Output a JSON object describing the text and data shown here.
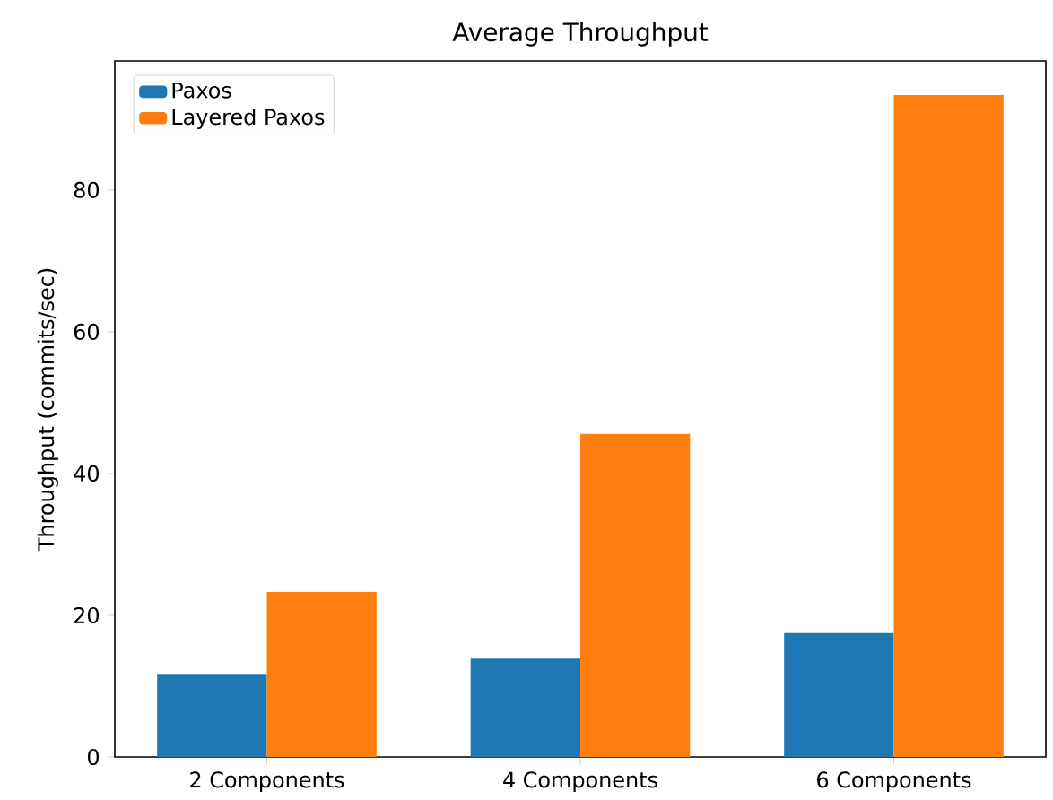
{
  "chart_data": {
    "type": "bar",
    "title": "Average Throughput",
    "ylabel": "Throughput (commits/sec)",
    "categories": [
      "2 Components",
      "4 Components",
      "6 Components"
    ],
    "series": [
      {
        "name": "Paxos",
        "color": "#1f77b4",
        "values": [
          11.6,
          13.9,
          17.5
        ]
      },
      {
        "name": "Layered Paxos",
        "color": "#ff7f0e",
        "values": [
          23.3,
          45.6,
          93.4
        ]
      }
    ],
    "ylim": [
      0,
      98.2
    ],
    "yticks": [
      0,
      20,
      40,
      60,
      80
    ],
    "legend": "top left",
    "grid": false
  }
}
